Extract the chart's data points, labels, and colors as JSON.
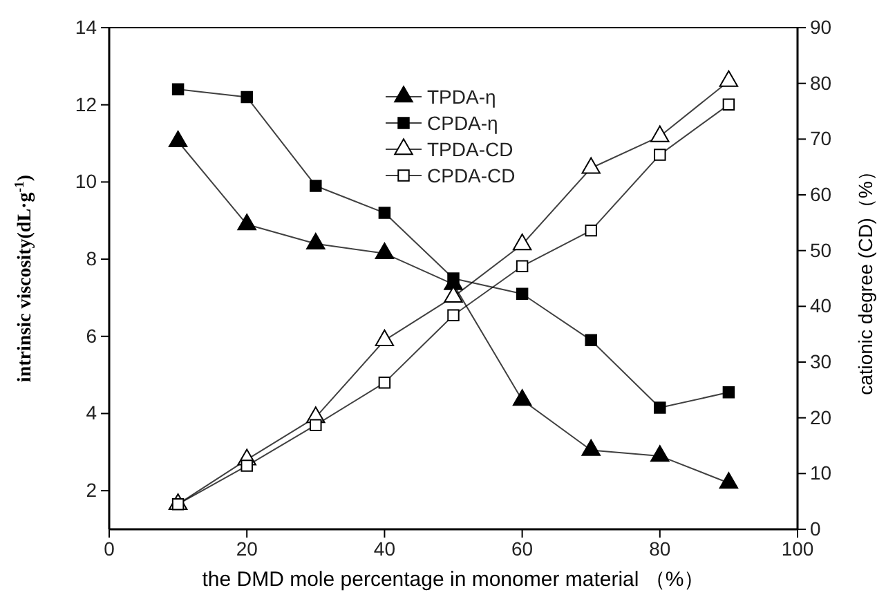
{
  "chart_data": {
    "type": "line",
    "xlabel": "the DMD mole percentage in monomer material （%）",
    "ylabel": "intrinsic viscosity(dL·g$^{-1}$)",
    "y2label": "cationic degree (CD)（%）",
    "x": [
      10,
      20,
      30,
      40,
      50,
      60,
      70,
      80,
      90
    ],
    "xlim": [
      0,
      100
    ],
    "xticks": [
      0,
      20,
      40,
      60,
      80,
      100
    ],
    "ylim": [
      1,
      14
    ],
    "yticks": [
      2,
      4,
      6,
      8,
      10,
      12,
      14
    ],
    "y2lim": [
      0,
      90
    ],
    "y2ticks": [
      0,
      10,
      20,
      30,
      40,
      50,
      60,
      70,
      80,
      90
    ],
    "legend": "top right",
    "grid": false,
    "line_style": "solid",
    "series": [
      {
        "name": "TPDA-η",
        "color": "#000000",
        "marker": "triangle",
        "values": [
          11.05,
          8.9,
          8.4,
          8.15,
          7.35,
          4.35,
          3.05,
          2.9,
          2.2
        ]
      },
      {
        "name": "CPDA-η",
        "color": "#000000",
        "marker": "square",
        "values": [
          12.4,
          12.2,
          9.9,
          9.2,
          7.5,
          7.1,
          5.9,
          4.15,
          4.55
        ]
      },
      {
        "name": "TPDA-CD",
        "color": "#000000",
        "marker": "triangle",
        "axis": "y2",
        "values": [
          4.5,
          12.5,
          20.1,
          33.9,
          41.7,
          51.1,
          64.8,
          70.5,
          80.4
        ]
      },
      {
        "name": "CPDA-CD",
        "color": "#000000",
        "marker": "square",
        "axis": "y2",
        "values": [
          4.5,
          11.4,
          18.7,
          26.3,
          38.4,
          47.2,
          53.6,
          67.2,
          76.2
        ]
      }
    ]
  }
}
